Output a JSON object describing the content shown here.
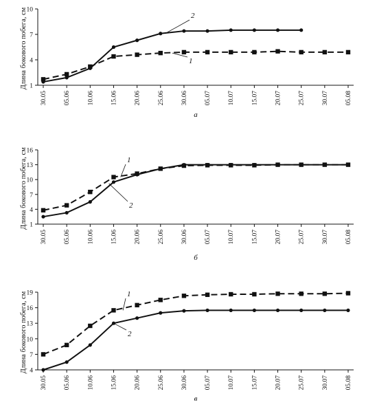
{
  "chart_data": [
    {
      "type": "line",
      "panel_label": "а",
      "ylabel": "Длина бокового побега, см",
      "xlabel": "",
      "categories": [
        "30.05",
        "05.06",
        "10.06",
        "15.06",
        "20.06",
        "25.06",
        "30.06",
        "05.07",
        "10.07",
        "15.07",
        "20.07",
        "25.07",
        "30.07",
        "05.08"
      ],
      "ylim": [
        1,
        10
      ],
      "yticks": [
        1,
        4,
        7,
        10
      ],
      "series": [
        {
          "name": "1",
          "style": "dashed-square",
          "values": [
            1.7,
            2.3,
            3.2,
            4.4,
            4.6,
            4.8,
            4.9,
            4.9,
            4.9,
            4.9,
            5.0,
            4.9,
            4.9,
            4.9
          ]
        },
        {
          "name": "2",
          "style": "solid-circle",
          "values": [
            1.4,
            1.9,
            3.0,
            5.5,
            6.3,
            7.1,
            7.4,
            7.4,
            7.5,
            7.5,
            7.5,
            7.5,
            null,
            null
          ]
        }
      ]
    },
    {
      "type": "line",
      "panel_label": "б",
      "ylabel": "Длина бокового побега, см",
      "xlabel": "",
      "categories": [
        "30.05",
        "05.06",
        "10.06",
        "15.06",
        "20.06",
        "25.06",
        "30.06",
        "05.07",
        "10.07",
        "15.07",
        "20.07",
        "25.07",
        "30.07",
        "05.08"
      ],
      "ylim": [
        1,
        16
      ],
      "yticks": [
        1,
        4,
        7,
        10,
        13,
        16
      ],
      "series": [
        {
          "name": "1",
          "style": "dashed-square",
          "values": [
            3.8,
            4.8,
            7.5,
            10.5,
            11.2,
            12.2,
            12.8,
            12.9,
            12.9,
            12.9,
            13.0,
            13.0,
            13.0,
            13.0
          ]
        },
        {
          "name": "2",
          "style": "solid-circle",
          "values": [
            2.5,
            3.3,
            5.5,
            9.5,
            11.0,
            12.2,
            13.0,
            13.0,
            13.0,
            13.0,
            13.0,
            13.0,
            13.0,
            13.0
          ]
        }
      ]
    },
    {
      "type": "line",
      "panel_label": "в",
      "ylabel": "Длина бокового побега, см",
      "xlabel": "",
      "categories": [
        "30.05",
        "05.06",
        "10.06",
        "15.06",
        "20.06",
        "25.06",
        "30.06",
        "05.07",
        "10.07",
        "15.07",
        "20.07",
        "25.07",
        "30.07",
        "05.08"
      ],
      "ylim": [
        4,
        19
      ],
      "yticks": [
        4,
        7,
        10,
        13,
        16,
        19
      ],
      "series": [
        {
          "name": "1",
          "style": "dashed-square",
          "values": [
            7.0,
            8.8,
            12.5,
            15.5,
            16.5,
            17.5,
            18.3,
            18.5,
            18.6,
            18.6,
            18.7,
            18.7,
            18.7,
            18.8
          ]
        },
        {
          "name": "2",
          "style": "solid-circle",
          "values": [
            4.0,
            5.5,
            8.8,
            13.0,
            14.0,
            15.0,
            15.4,
            15.5,
            15.5,
            15.5,
            15.5,
            15.5,
            15.5,
            15.5
          ]
        }
      ]
    }
  ]
}
